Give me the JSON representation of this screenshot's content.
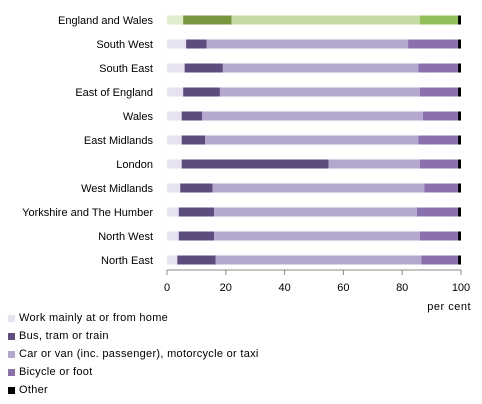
{
  "chart_data": {
    "type": "bar",
    "orientation": "horizontal",
    "stacked": true,
    "title": "",
    "xlabel": "per cent",
    "xlim": [
      0,
      100
    ],
    "xticks": [
      0,
      20,
      40,
      60,
      80,
      100
    ],
    "grid": false,
    "legend_position": "bottom-left",
    "categories": [
      "England and Wales",
      "South West",
      "South East",
      "East of England",
      "Wales",
      "East Midlands",
      "London",
      "West Midlands",
      "Yorkshire and The Humber",
      "North West",
      "North East"
    ],
    "series": [
      {
        "name": "Work mainly at or from home",
        "colors": [
          "#e6e2f0"
        ],
        "values": [
          5.5,
          6.5,
          6.0,
          5.5,
          5.0,
          5.0,
          5.0,
          4.5,
          4.0,
          4.0,
          3.5
        ]
      },
      {
        "name": "Bus, tram or train",
        "colors": [
          "#5d4d7e"
        ],
        "values": [
          16.5,
          7.0,
          13.0,
          12.5,
          7.0,
          8.0,
          50.0,
          11.0,
          12.0,
          12.0,
          13.0
        ]
      },
      {
        "name": "Car or van (inc. passenger), motorcycle or taxi",
        "colors": [
          "#b5a8cf"
        ],
        "values": [
          64.0,
          68.5,
          66.5,
          68.0,
          75.0,
          72.5,
          31.0,
          72.0,
          69.0,
          70.0,
          70.0
        ]
      },
      {
        "name": "Bicycle or foot",
        "colors": [
          "#8a71ad"
        ],
        "values": [
          13.0,
          17.0,
          13.5,
          13.0,
          12.0,
          13.5,
          13.0,
          11.5,
          14.0,
          13.0,
          12.5
        ]
      },
      {
        "name": "Other",
        "colors": [
          "#000000"
        ],
        "values": [
          1.0,
          1.0,
          1.0,
          1.0,
          1.0,
          1.0,
          1.0,
          1.0,
          1.0,
          1.0,
          1.0
        ]
      }
    ],
    "highlight_category": "England and Wales",
    "highlight_colors": [
      "#dfeecd",
      "#77963d",
      "#c4dca4",
      "#93bf5a",
      "#000000"
    ]
  }
}
